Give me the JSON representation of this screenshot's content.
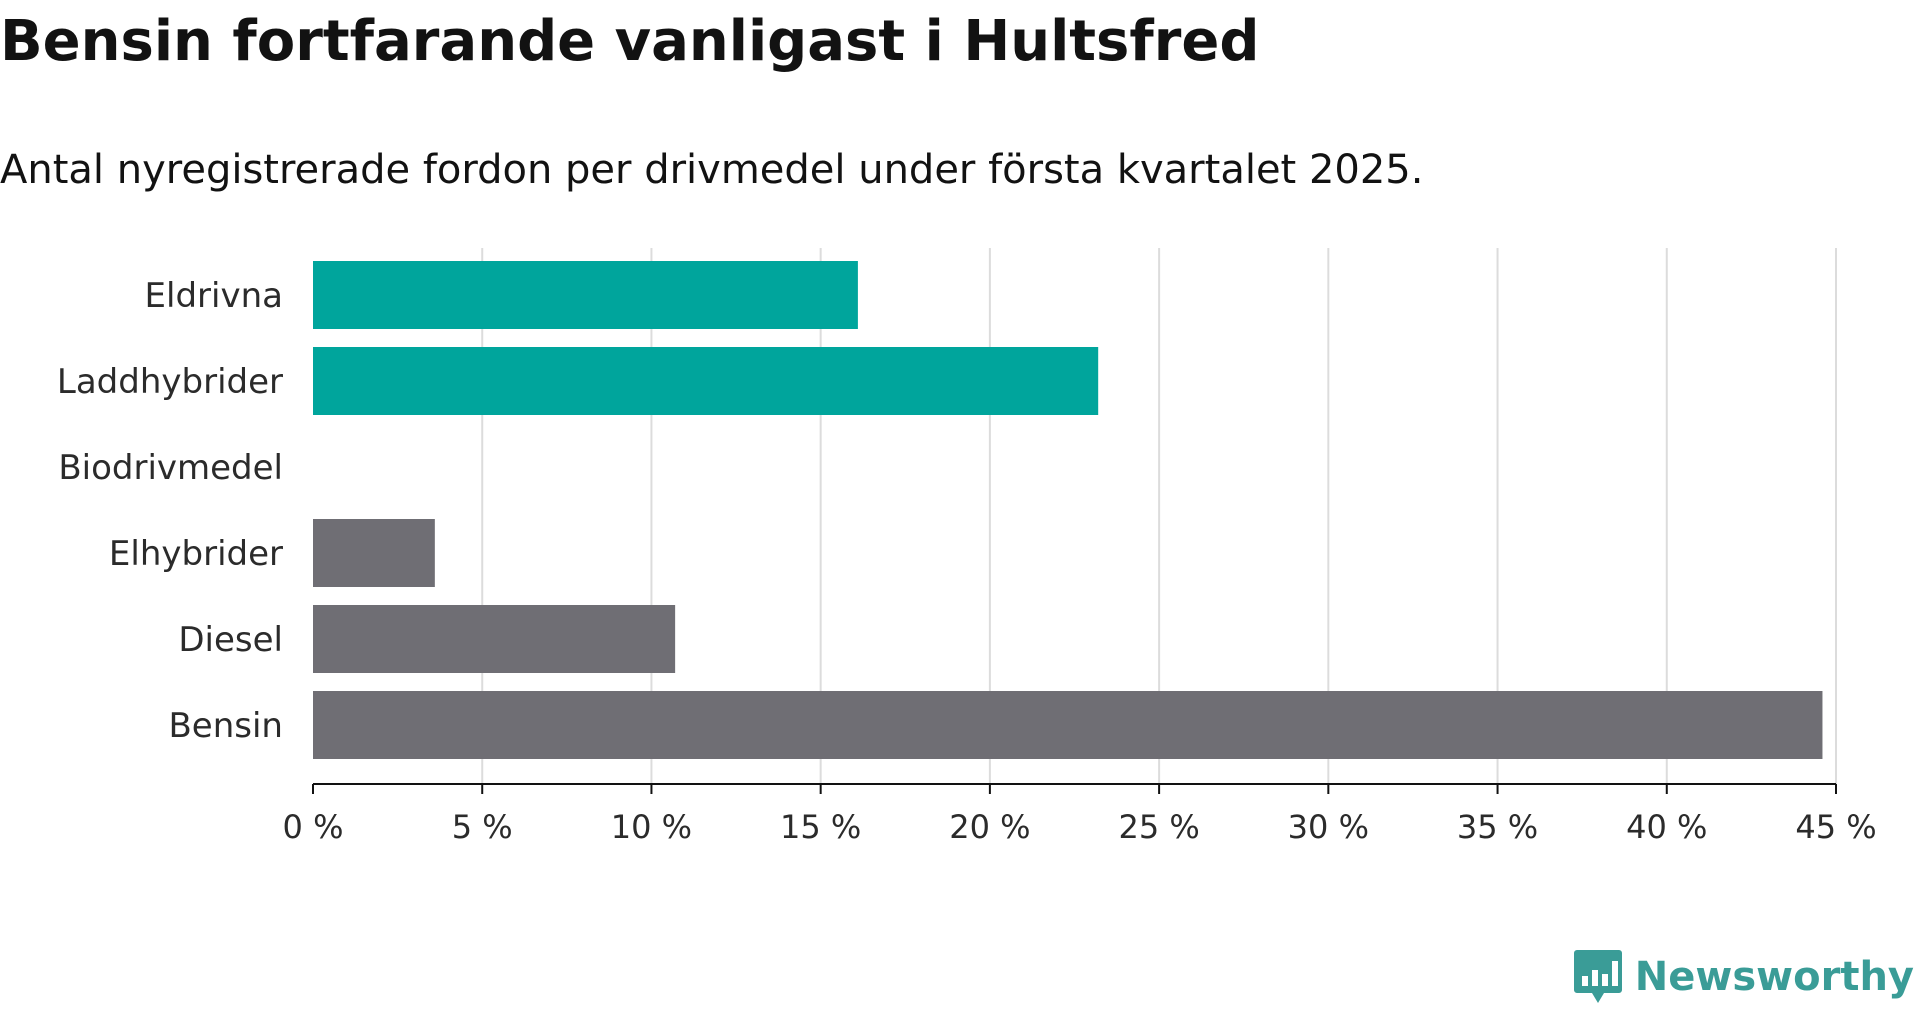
{
  "title": "Bensin fortfarande vanligast i Hultsfred",
  "subtitle": "Antal nyregistrerade fordon per drivmedel under första kvartalet 2025.",
  "brand": {
    "name": "Newsworthy",
    "icon": "bar-chart-speech-bubble-icon",
    "color": "#3a9c97"
  },
  "chart_data": {
    "type": "bar",
    "orientation": "horizontal",
    "categories": [
      "Eldrivna",
      "Laddhybrider",
      "Biodrivmedel",
      "Elhybrider",
      "Diesel",
      "Bensin"
    ],
    "values": [
      16.1,
      23.2,
      0,
      3.6,
      10.7,
      44.6
    ],
    "colors": [
      "#00a59c",
      "#00a59c",
      "#00a59c",
      "#6f6e74",
      "#6f6e74",
      "#6f6e74"
    ],
    "xlim": [
      0,
      45
    ],
    "xticks": [
      {
        "value": 0,
        "label": "0 %"
      },
      {
        "value": 5,
        "label": "5 %"
      },
      {
        "value": 10,
        "label": "10 %"
      },
      {
        "value": 15,
        "label": "15 %"
      },
      {
        "value": 20,
        "label": "20 %"
      },
      {
        "value": 25,
        "label": "25 %"
      },
      {
        "value": 30,
        "label": "30 %"
      },
      {
        "value": 35,
        "label": "35 %"
      },
      {
        "value": 40,
        "label": "40 %"
      },
      {
        "value": 45,
        "label": "45 %"
      }
    ],
    "grid": "vertical",
    "xlabel": "",
    "ylabel": ""
  }
}
